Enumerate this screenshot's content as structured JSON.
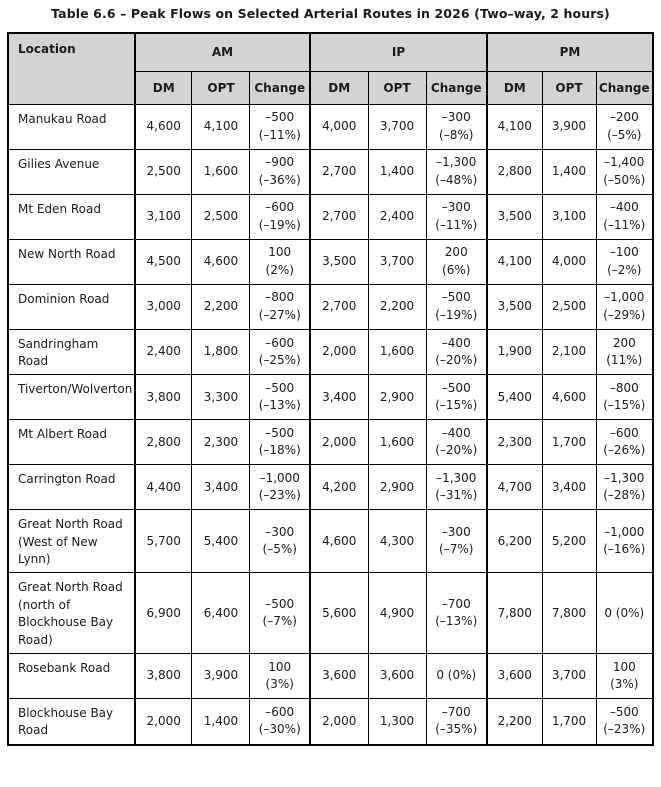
{
  "title": "Table 6.6 – Peak Flows on Selected Arterial Routes in 2026 (Two–way, 2 hours)",
  "table": {
    "location_header": "Location",
    "groups": [
      "AM",
      "IP",
      "PM"
    ],
    "sub_headers": [
      "DM",
      "OPT",
      "Change"
    ],
    "rows": [
      {
        "location": "Manukau Road",
        "am": [
          "4,600",
          "4,100",
          "–500\n(–11%)"
        ],
        "ip": [
          "4,000",
          "3,700",
          "–300\n(–8%)"
        ],
        "pm": [
          "4,100",
          "3,900",
          "–200\n(–5%)"
        ]
      },
      {
        "location": "Gilies Avenue",
        "am": [
          "2,500",
          "1,600",
          "–900\n(–36%)"
        ],
        "ip": [
          "2,700",
          "1,400",
          "–1,300\n(–48%)"
        ],
        "pm": [
          "2,800",
          "1,400",
          "–1,400\n(–50%)"
        ]
      },
      {
        "location": "Mt Eden Road",
        "am": [
          "3,100",
          "2,500",
          "–600\n(–19%)"
        ],
        "ip": [
          "2,700",
          "2,400",
          "–300\n(–11%)"
        ],
        "pm": [
          "3,500",
          "3,100",
          "–400\n(–11%)"
        ]
      },
      {
        "location": "New North Road",
        "am": [
          "4,500",
          "4,600",
          "100\n(2%)"
        ],
        "ip": [
          "3,500",
          "3,700",
          "200\n(6%)"
        ],
        "pm": [
          "4,100",
          "4,000",
          "–100\n(–2%)"
        ]
      },
      {
        "location": "Dominion Road",
        "am": [
          "3,000",
          "2,200",
          "–800\n(–27%)"
        ],
        "ip": [
          "2,700",
          "2,200",
          "–500\n(–19%)"
        ],
        "pm": [
          "3,500",
          "2,500",
          "–1,000\n(–29%)"
        ]
      },
      {
        "location": "Sandringham Road",
        "am": [
          "2,400",
          "1,800",
          "–600\n(–25%)"
        ],
        "ip": [
          "2,000",
          "1,600",
          "–400\n(–20%)"
        ],
        "pm": [
          "1,900",
          "2,100",
          "200\n(11%)"
        ]
      },
      {
        "location": "Tiverton/Wolverton",
        "am": [
          "3,800",
          "3,300",
          "–500\n(–13%)"
        ],
        "ip": [
          "3,400",
          "2,900",
          "–500\n(–15%)"
        ],
        "pm": [
          "5,400",
          "4,600",
          "–800\n(–15%)"
        ]
      },
      {
        "location": "Mt Albert Road",
        "am": [
          "2,800",
          "2,300",
          "–500\n(–18%)"
        ],
        "ip": [
          "2,000",
          "1,600",
          "–400\n(–20%)"
        ],
        "pm": [
          "2,300",
          "1,700",
          "–600\n(–26%)"
        ]
      },
      {
        "location": "Carrington Road",
        "am": [
          "4,400",
          "3,400",
          "–1,000\n(–23%)"
        ],
        "ip": [
          "4,200",
          "2,900",
          "–1,300\n(–31%)"
        ],
        "pm": [
          "4,700",
          "3,400",
          "–1,300\n(–28%)"
        ]
      },
      {
        "location": "Great North Road\n(West of New Lynn)",
        "am": [
          "5,700",
          "5,400",
          "–300\n(–5%)"
        ],
        "ip": [
          "4,600",
          "4,300",
          "–300\n(–7%)"
        ],
        "pm": [
          "6,200",
          "5,200",
          "–1,000\n(–16%)"
        ]
      },
      {
        "location": "Great North Road\n(north of\nBlockhouse Bay\nRoad)",
        "am": [
          "6,900",
          "6,400",
          "–500\n(–7%)"
        ],
        "ip": [
          "5,600",
          "4,900",
          "–700\n(–13%)"
        ],
        "pm": [
          "7,800",
          "7,800",
          "0 (0%)"
        ]
      },
      {
        "location": "Rosebank Road",
        "am": [
          "3,800",
          "3,900",
          "100\n(3%)"
        ],
        "ip": [
          "3,600",
          "3,600",
          "0 (0%)"
        ],
        "pm": [
          "3,600",
          "3,700",
          "100\n(3%)"
        ]
      },
      {
        "location": "Blockhouse Bay\nRoad",
        "am": [
          "2,000",
          "1,400",
          "–600\n(–30%)"
        ],
        "ip": [
          "2,000",
          "1,300",
          "–700\n(–35%)"
        ],
        "pm": [
          "2,200",
          "1,700",
          "–500\n(–23%)"
        ]
      }
    ]
  }
}
